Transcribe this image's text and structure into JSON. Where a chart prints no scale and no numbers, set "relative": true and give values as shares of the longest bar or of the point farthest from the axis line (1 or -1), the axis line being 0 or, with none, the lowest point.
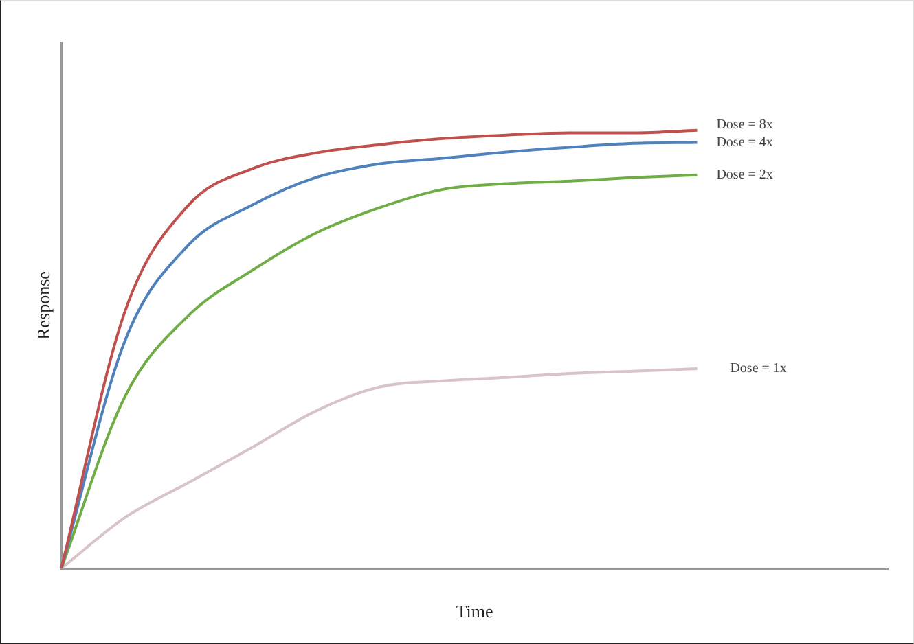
{
  "chart_data": {
    "type": "line",
    "xlabel": "Time",
    "ylabel": "Response",
    "relative": true,
    "categories": [
      null,
      null,
      null,
      null,
      null,
      null,
      null,
      null,
      null,
      null,
      null,
      null,
      null,
      null
    ],
    "grid": false,
    "legend": false,
    "marker": "none",
    "line_style": "solid",
    "series": [
      {
        "name": "Dose = 8x",
        "color": "#c0504d",
        "values": [
          0,
          0.586,
          0.829,
          0.912,
          0.948,
          0.967,
          0.981,
          0.989,
          0.994,
          0.994,
          1,
          null,
          null,
          null
        ]
      },
      {
        "name": "Dose = 4x",
        "color": "#4f81bd",
        "values": [
          0,
          0.519,
          0.738,
          0.829,
          0.892,
          0.923,
          0.936,
          0.95,
          0.961,
          0.97,
          0.972,
          null,
          null,
          null
        ]
      },
      {
        "name": "Dose = 2x",
        "color": "#70ad47",
        "values": [
          0,
          0.392,
          0.577,
          0.68,
          0.765,
          0.823,
          0.865,
          0.878,
          0.884,
          0.892,
          0.898,
          null,
          null,
          null
        ]
      },
      {
        "name": "Dose = 1x",
        "color": "#d8c4c6",
        "values": [
          0,
          0.116,
          0.196,
          0.276,
          0.359,
          0.414,
          0.428,
          0.436,
          0.445,
          0.45,
          0.456,
          null,
          null,
          null
        ]
      }
    ]
  }
}
